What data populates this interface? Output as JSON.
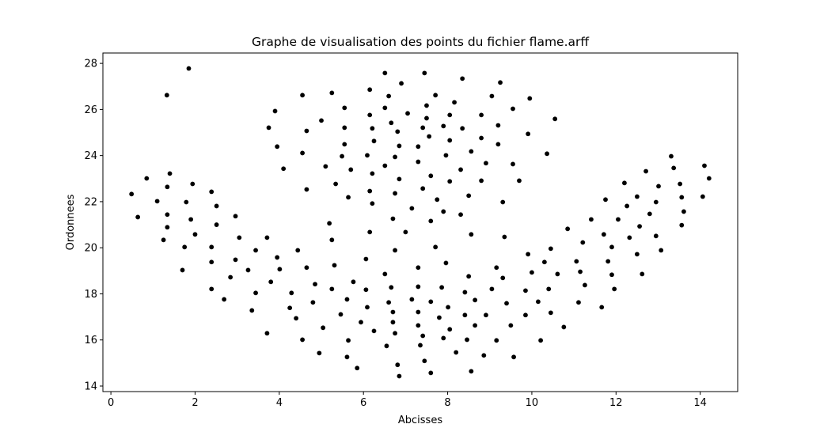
{
  "chart_data": {
    "type": "scatter",
    "title": "Graphe de visualisation des points du fichier flame.arff",
    "xlabel": "Abcisses",
    "ylabel": "Ordonnees",
    "xlim": [
      -0.19,
      14.89
    ],
    "ylim": [
      13.76,
      28.45
    ],
    "xticks": [
      0,
      2,
      4,
      6,
      8,
      10,
      12,
      14
    ],
    "yticks": [
      14,
      16,
      18,
      20,
      22,
      24,
      26,
      28
    ],
    "grid": false,
    "marker_color": "#000000",
    "points": [
      [
        1.85,
        27.78
      ],
      [
        1.33,
        26.62
      ],
      [
        4.55,
        26.62
      ],
      [
        3.9,
        25.93
      ],
      [
        3.75,
        25.21
      ],
      [
        4.65,
        25.07
      ],
      [
        3.95,
        24.39
      ],
      [
        4.55,
        24.11
      ],
      [
        4.1,
        23.43
      ],
      [
        4.65,
        22.53
      ],
      [
        0.85,
        23.01
      ],
      [
        1.4,
        23.22
      ],
      [
        1.34,
        22.64
      ],
      [
        1.94,
        22.77
      ],
      [
        0.49,
        22.33
      ],
      [
        1.1,
        22.02
      ],
      [
        1.79,
        21.98
      ],
      [
        2.39,
        22.43
      ],
      [
        2.51,
        21.81
      ],
      [
        0.64,
        21.33
      ],
      [
        1.34,
        21.44
      ],
      [
        1.9,
        21.23
      ],
      [
        2.96,
        21.37
      ],
      [
        2.51,
        21.0
      ],
      [
        1.34,
        20.89
      ],
      [
        1.25,
        20.34
      ],
      [
        2.0,
        20.58
      ],
      [
        3.05,
        20.44
      ],
      [
        3.71,
        20.44
      ],
      [
        1.75,
        20.03
      ],
      [
        2.39,
        20.03
      ],
      [
        3.44,
        19.89
      ],
      [
        4.44,
        19.89
      ],
      [
        3.95,
        19.58
      ],
      [
        2.96,
        19.48
      ],
      [
        2.39,
        19.38
      ],
      [
        4.01,
        19.07
      ],
      [
        4.65,
        19.14
      ],
      [
        1.7,
        19.03
      ],
      [
        3.26,
        19.03
      ],
      [
        2.84,
        18.72
      ],
      [
        3.8,
        18.52
      ],
      [
        4.85,
        18.42
      ],
      [
        2.39,
        18.21
      ],
      [
        3.44,
        18.04
      ],
      [
        4.29,
        18.04
      ],
      [
        2.69,
        17.76
      ],
      [
        4.8,
        17.63
      ],
      [
        3.35,
        17.28
      ],
      [
        4.25,
        17.39
      ],
      [
        4.4,
        16.94
      ],
      [
        3.71,
        16.29
      ],
      [
        4.55,
        16.01
      ],
      [
        6.51,
        27.58
      ],
      [
        7.45,
        27.58
      ],
      [
        8.35,
        27.34
      ],
      [
        9.25,
        27.17
      ],
      [
        6.9,
        27.13
      ],
      [
        5.25,
        26.72
      ],
      [
        6.15,
        26.86
      ],
      [
        6.6,
        26.58
      ],
      [
        7.71,
        26.62
      ],
      [
        9.05,
        26.58
      ],
      [
        8.16,
        26.31
      ],
      [
        9.55,
        26.03
      ],
      [
        5.55,
        26.07
      ],
      [
        6.51,
        26.07
      ],
      [
        7.5,
        26.17
      ],
      [
        6.15,
        25.76
      ],
      [
        7.05,
        25.83
      ],
      [
        7.5,
        25.62
      ],
      [
        8.05,
        25.76
      ],
      [
        8.8,
        25.76
      ],
      [
        5.0,
        25.52
      ],
      [
        5.55,
        25.21
      ],
      [
        6.21,
        25.18
      ],
      [
        6.66,
        25.42
      ],
      [
        6.81,
        25.04
      ],
      [
        7.41,
        25.21
      ],
      [
        7.9,
        25.28
      ],
      [
        8.35,
        25.18
      ],
      [
        9.2,
        25.31
      ],
      [
        7.56,
        24.83
      ],
      [
        5.55,
        24.49
      ],
      [
        6.25,
        24.63
      ],
      [
        6.85,
        24.42
      ],
      [
        7.3,
        24.39
      ],
      [
        8.05,
        24.66
      ],
      [
        8.8,
        24.76
      ],
      [
        9.2,
        24.49
      ],
      [
        5.49,
        23.97
      ],
      [
        6.09,
        24.01
      ],
      [
        6.75,
        23.94
      ],
      [
        7.3,
        23.73
      ],
      [
        7.96,
        24.01
      ],
      [
        8.56,
        24.18
      ],
      [
        5.1,
        23.53
      ],
      [
        5.7,
        23.39
      ],
      [
        6.21,
        23.22
      ],
      [
        6.51,
        23.56
      ],
      [
        7.6,
        23.12
      ],
      [
        8.31,
        23.39
      ],
      [
        8.91,
        23.67
      ],
      [
        9.55,
        23.63
      ],
      [
        5.34,
        22.77
      ],
      [
        6.85,
        22.98
      ],
      [
        8.05,
        22.88
      ],
      [
        8.8,
        22.91
      ],
      [
        5.64,
        22.19
      ],
      [
        6.15,
        22.46
      ],
      [
        6.75,
        22.36
      ],
      [
        7.41,
        22.57
      ],
      [
        8.5,
        22.26
      ],
      [
        6.21,
        21.92
      ],
      [
        7.75,
        22.09
      ],
      [
        9.31,
        21.98
      ],
      [
        7.15,
        21.71
      ],
      [
        7.9,
        21.57
      ],
      [
        5.19,
        21.06
      ],
      [
        6.7,
        21.26
      ],
      [
        7.6,
        21.16
      ],
      [
        8.31,
        21.44
      ],
      [
        6.15,
        20.68
      ],
      [
        7.0,
        20.68
      ],
      [
        8.56,
        20.58
      ],
      [
        9.35,
        20.47
      ],
      [
        5.25,
        20.34
      ],
      [
        6.75,
        19.89
      ],
      [
        7.71,
        20.03
      ],
      [
        6.06,
        19.51
      ],
      [
        5.31,
        19.24
      ],
      [
        7.3,
        19.14
      ],
      [
        7.96,
        19.34
      ],
      [
        9.16,
        19.14
      ],
      [
        6.51,
        18.86
      ],
      [
        8.5,
        18.76
      ],
      [
        9.31,
        18.69
      ],
      [
        5.76,
        18.52
      ],
      [
        5.25,
        18.21
      ],
      [
        6.06,
        18.18
      ],
      [
        6.66,
        18.28
      ],
      [
        7.3,
        18.31
      ],
      [
        7.86,
        18.28
      ],
      [
        8.41,
        18.07
      ],
      [
        9.05,
        18.21
      ],
      [
        5.61,
        17.76
      ],
      [
        6.6,
        17.63
      ],
      [
        7.15,
        17.76
      ],
      [
        7.6,
        17.66
      ],
      [
        8.65,
        17.73
      ],
      [
        9.4,
        17.59
      ],
      [
        6.09,
        17.42
      ],
      [
        6.7,
        17.21
      ],
      [
        7.3,
        17.21
      ],
      [
        8.01,
        17.42
      ],
      [
        5.46,
        17.11
      ],
      [
        7.8,
        16.97
      ],
      [
        8.41,
        17.08
      ],
      [
        8.91,
        17.08
      ],
      [
        5.04,
        16.53
      ],
      [
        5.94,
        16.77
      ],
      [
        6.7,
        16.77
      ],
      [
        7.3,
        16.63
      ],
      [
        8.65,
        16.63
      ],
      [
        9.5,
        16.63
      ],
      [
        6.25,
        16.39
      ],
      [
        6.75,
        16.29
      ],
      [
        7.41,
        16.18
      ],
      [
        8.05,
        16.46
      ],
      [
        5.64,
        15.98
      ],
      [
        7.9,
        16.08
      ],
      [
        8.46,
        16.01
      ],
      [
        9.16,
        15.98
      ],
      [
        6.55,
        15.74
      ],
      [
        7.35,
        15.77
      ],
      [
        4.95,
        15.43
      ],
      [
        5.61,
        15.26
      ],
      [
        8.2,
        15.46
      ],
      [
        8.86,
        15.33
      ],
      [
        9.57,
        15.26
      ],
      [
        5.85,
        14.78
      ],
      [
        6.81,
        14.92
      ],
      [
        7.45,
        15.09
      ],
      [
        6.85,
        14.43
      ],
      [
        7.6,
        14.57
      ],
      [
        8.56,
        14.64
      ],
      [
        9.95,
        26.48
      ],
      [
        10.55,
        25.59
      ],
      [
        9.91,
        24.94
      ],
      [
        10.36,
        24.08
      ],
      [
        9.7,
        22.91
      ],
      [
        13.31,
        23.97
      ],
      [
        13.37,
        23.46
      ],
      [
        14.1,
        23.56
      ],
      [
        14.21,
        23.01
      ],
      [
        12.71,
        23.32
      ],
      [
        12.2,
        22.81
      ],
      [
        13.01,
        22.67
      ],
      [
        13.52,
        22.77
      ],
      [
        11.75,
        22.09
      ],
      [
        12.5,
        22.22
      ],
      [
        13.56,
        22.19
      ],
      [
        14.06,
        22.22
      ],
      [
        12.26,
        21.81
      ],
      [
        12.95,
        21.98
      ],
      [
        13.61,
        21.57
      ],
      [
        12.8,
        21.47
      ],
      [
        11.41,
        21.23
      ],
      [
        12.05,
        21.23
      ],
      [
        13.56,
        20.98
      ],
      [
        12.56,
        20.93
      ],
      [
        10.85,
        20.82
      ],
      [
        11.71,
        20.58
      ],
      [
        12.32,
        20.44
      ],
      [
        12.95,
        20.51
      ],
      [
        11.21,
        20.23
      ],
      [
        11.9,
        20.03
      ],
      [
        13.07,
        19.89
      ],
      [
        9.91,
        19.72
      ],
      [
        10.45,
        19.96
      ],
      [
        12.5,
        19.72
      ],
      [
        10.3,
        19.38
      ],
      [
        11.06,
        19.41
      ],
      [
        11.81,
        19.41
      ],
      [
        10.0,
        18.93
      ],
      [
        10.61,
        18.86
      ],
      [
        11.15,
        18.96
      ],
      [
        11.9,
        18.83
      ],
      [
        12.62,
        18.86
      ],
      [
        9.85,
        18.14
      ],
      [
        10.4,
        18.21
      ],
      [
        11.26,
        18.38
      ],
      [
        11.96,
        18.21
      ],
      [
        10.15,
        17.66
      ],
      [
        11.11,
        17.63
      ],
      [
        11.66,
        17.42
      ],
      [
        9.85,
        17.08
      ],
      [
        10.45,
        17.18
      ],
      [
        10.76,
        16.56
      ],
      [
        10.21,
        15.98
      ]
    ]
  }
}
